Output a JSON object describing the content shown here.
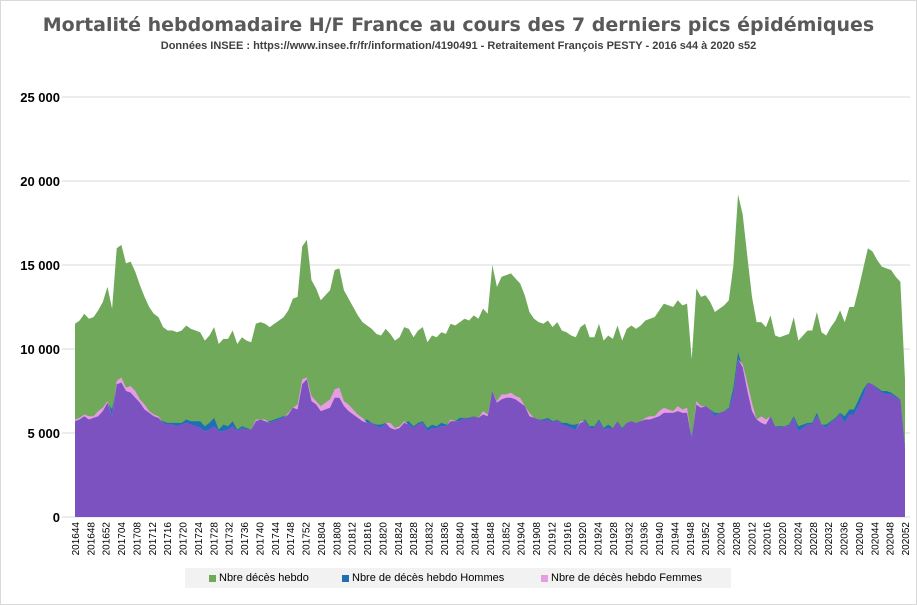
{
  "header": {
    "title": "Mortalité hebdomadaire H/F France au cours des 7 derniers pics épidémiques",
    "subtitle": "Données INSEE : https://www.insee.fr/fr/information/4190491 - Retraitement François PESTY - 2016 s44 à 2020 s52"
  },
  "colors": {
    "total": "#70a95a",
    "hommes": "#1f6fb6",
    "femmes": "#e59ce0",
    "overlap": "#7b52bf",
    "grid": "#d9d9d9"
  },
  "chart_data": {
    "type": "area",
    "title": "Mortalité hebdomadaire H/F France au cours des 7 derniers pics épidémiques",
    "subtitle": "Données INSEE : https://www.insee.fr/fr/information/4190491 - Retraitement François PESTY - 2016 s44 à 2020 s52",
    "xlabel": "",
    "ylabel": "",
    "ylim": [
      0,
      25000
    ],
    "yticks": [
      0,
      5000,
      10000,
      15000,
      20000,
      25000
    ],
    "ytick_labels": [
      "0",
      "5 000",
      "10 000",
      "15 000",
      "20 000",
      "25 000"
    ],
    "x_tick_labels": [
      "201644",
      "201648",
      "201652",
      "201704",
      "201708",
      "201712",
      "201716",
      "201720",
      "201724",
      "201728",
      "201732",
      "201736",
      "201740",
      "201744",
      "201748",
      "201752",
      "201804",
      "201808",
      "201812",
      "201816",
      "201820",
      "201824",
      "201828",
      "201832",
      "201836",
      "201840",
      "201844",
      "201848",
      "201852",
      "201904",
      "201908",
      "201912",
      "201916",
      "201920",
      "201924",
      "201928",
      "201932",
      "201936",
      "201940",
      "201944",
      "201948",
      "201952",
      "202004",
      "202008",
      "202012",
      "202016",
      "202020",
      "202024",
      "202028",
      "202032",
      "202036",
      "202040",
      "202044",
      "202048",
      "202052"
    ],
    "grid": true,
    "legend_position": "bottom",
    "legend": [
      "Nbre décès hebdo",
      "Nbre de décès hebdo Hommes",
      "Nbre de décès hebdo Femmes"
    ],
    "series": [
      {
        "name": "Nbre décès hebdo",
        "values": [
          11500,
          11700,
          12100,
          11800,
          11900,
          12300,
          12800,
          13700,
          12400,
          16000,
          16200,
          15100,
          15200,
          14600,
          13800,
          13100,
          12500,
          12100,
          11900,
          11300,
          11100,
          11100,
          11000,
          11100,
          11400,
          11200,
          11100,
          11000,
          10500,
          10800,
          11300,
          10300,
          10600,
          10600,
          11100,
          10300,
          10700,
          10500,
          10400,
          11500,
          11600,
          11500,
          11300,
          11500,
          11700,
          11900,
          12300,
          13000,
          13100,
          16100,
          16500,
          14100,
          13600,
          12900,
          13200,
          13500,
          14700,
          14800,
          13500,
          13000,
          12500,
          12000,
          11600,
          11400,
          11200,
          10900,
          10800,
          11200,
          10900,
          10500,
          10700,
          11300,
          11200,
          10700,
          11100,
          11300,
          10400,
          10800,
          10700,
          11000,
          10900,
          11500,
          11400,
          11600,
          11800,
          11700,
          12000,
          11800,
          12400,
          12100,
          15000,
          13700,
          14300,
          14400,
          14500,
          14200,
          13900,
          13200,
          12200,
          11800,
          11600,
          11500,
          11700,
          11300,
          11600,
          11100,
          11000,
          10800,
          10700,
          11300,
          11500,
          10700,
          10700,
          11500,
          10500,
          10800,
          10600,
          11400,
          10500,
          11200,
          11400,
          11200,
          11400,
          11700,
          11800,
          11900,
          12300,
          12700,
          12600,
          12500,
          12900,
          12600,
          12700,
          9400,
          13600,
          13100,
          13200,
          12800,
          12200,
          12400,
          12600,
          12900,
          15000,
          19200,
          18000,
          15500,
          13100,
          11600,
          11600,
          11300,
          12000,
          10800,
          10700,
          10800,
          10900,
          11900,
          10500,
          10800,
          11100,
          11100,
          12200,
          11000,
          10800,
          11300,
          11700,
          12300,
          11600,
          12500,
          12500,
          13600,
          14800,
          16000,
          15800,
          15300,
          14900,
          14800,
          14700,
          14300,
          14000,
          8200
        ],
        "color": "#70a95a"
      },
      {
        "name": "Nbre de décès hebdo Hommes",
        "values": [
          5700,
          5800,
          6000,
          5800,
          5900,
          6000,
          6300,
          6800,
          6400,
          7900,
          8000,
          7500,
          7400,
          7100,
          6800,
          6400,
          6200,
          6000,
          5900,
          5700,
          5600,
          5600,
          5600,
          5600,
          5800,
          5700,
          5700,
          5700,
          5400,
          5600,
          5900,
          5200,
          5500,
          5400,
          5700,
          5200,
          5400,
          5300,
          5200,
          5700,
          5800,
          5700,
          5700,
          5800,
          5900,
          6000,
          6100,
          6500,
          6400,
          7900,
          8200,
          6900,
          6700,
          6300,
          6400,
          6500,
          7100,
          7100,
          6600,
          6300,
          6100,
          5900,
          5700,
          5800,
          5600,
          5500,
          5500,
          5600,
          5300,
          5200,
          5300,
          5600,
          5700,
          5400,
          5600,
          5700,
          5300,
          5500,
          5400,
          5600,
          5500,
          5700,
          5700,
          5900,
          5900,
          5900,
          6000,
          5900,
          6100,
          6000,
          7500,
          6800,
          7000,
          7100,
          7100,
          7000,
          6800,
          6600,
          6000,
          5900,
          5800,
          5800,
          5900,
          5700,
          5800,
          5600,
          5600,
          5500,
          5500,
          5600,
          5800,
          5400,
          5400,
          5800,
          5300,
          5500,
          5300,
          5700,
          5300,
          5600,
          5700,
          5600,
          5700,
          5800,
          5800,
          5900,
          6000,
          6200,
          6200,
          6200,
          6300,
          6200,
          6200,
          4800,
          6700,
          6500,
          6600,
          6400,
          6200,
          6200,
          6300,
          6500,
          7700,
          9800,
          8900,
          7500,
          6300,
          5800,
          5600,
          5500,
          6000,
          5400,
          5400,
          5400,
          5500,
          6000,
          5400,
          5500,
          5600,
          5600,
          6200,
          5500,
          5500,
          5700,
          5900,
          6200,
          6000,
          6400,
          6400,
          7000,
          7600,
          8000,
          7900,
          7700,
          7500,
          7500,
          7400,
          7200,
          7000,
          4200
        ],
        "color": "#1f6fb6"
      },
      {
        "name": "Nbre de décès hebdo Femmes",
        "values": [
          5800,
          5900,
          6100,
          6000,
          6000,
          6300,
          6500,
          6900,
          6000,
          8100,
          8300,
          7700,
          7800,
          7500,
          7000,
          6700,
          6300,
          6100,
          6000,
          5600,
          5500,
          5500,
          5400,
          5500,
          5600,
          5500,
          5400,
          5300,
          5100,
          5200,
          5400,
          5100,
          5100,
          5200,
          5400,
          5100,
          5300,
          5200,
          5200,
          5800,
          5800,
          5800,
          5600,
          5700,
          5800,
          5900,
          6200,
          6500,
          6700,
          8200,
          8300,
          7200,
          6900,
          6600,
          6800,
          7000,
          7600,
          7700,
          6900,
          6700,
          6400,
          6100,
          5900,
          5600,
          5600,
          5400,
          5300,
          5600,
          5600,
          5300,
          5400,
          5700,
          5500,
          5300,
          5500,
          5600,
          5100,
          5300,
          5300,
          5400,
          5400,
          5800,
          5700,
          5700,
          5900,
          5800,
          6000,
          5900,
          6300,
          6100,
          7500,
          6900,
          7300,
          7300,
          7400,
          7200,
          7100,
          6600,
          6200,
          5900,
          5800,
          5700,
          5800,
          5600,
          5800,
          5500,
          5400,
          5300,
          5200,
          5700,
          5700,
          5300,
          5300,
          5700,
          5200,
          5300,
          5300,
          5700,
          5200,
          5600,
          5700,
          5600,
          5700,
          5900,
          6000,
          6000,
          6300,
          6500,
          6400,
          6300,
          6600,
          6400,
          6500,
          4600,
          6900,
          6600,
          6600,
          6400,
          6000,
          6200,
          6300,
          6400,
          7300,
          9400,
          9100,
          8000,
          6800,
          5800,
          6000,
          5800,
          6000,
          5400,
          5300,
          5400,
          5400,
          5900,
          5100,
          5300,
          5500,
          5500,
          6000,
          5500,
          5300,
          5600,
          5800,
          6100,
          5600,
          6100,
          6100,
          6600,
          7200,
          8000,
          7900,
          7600,
          7400,
          7300,
          7300,
          7100,
          7000,
          4000
        ],
        "color": "#e59ce0"
      }
    ]
  }
}
